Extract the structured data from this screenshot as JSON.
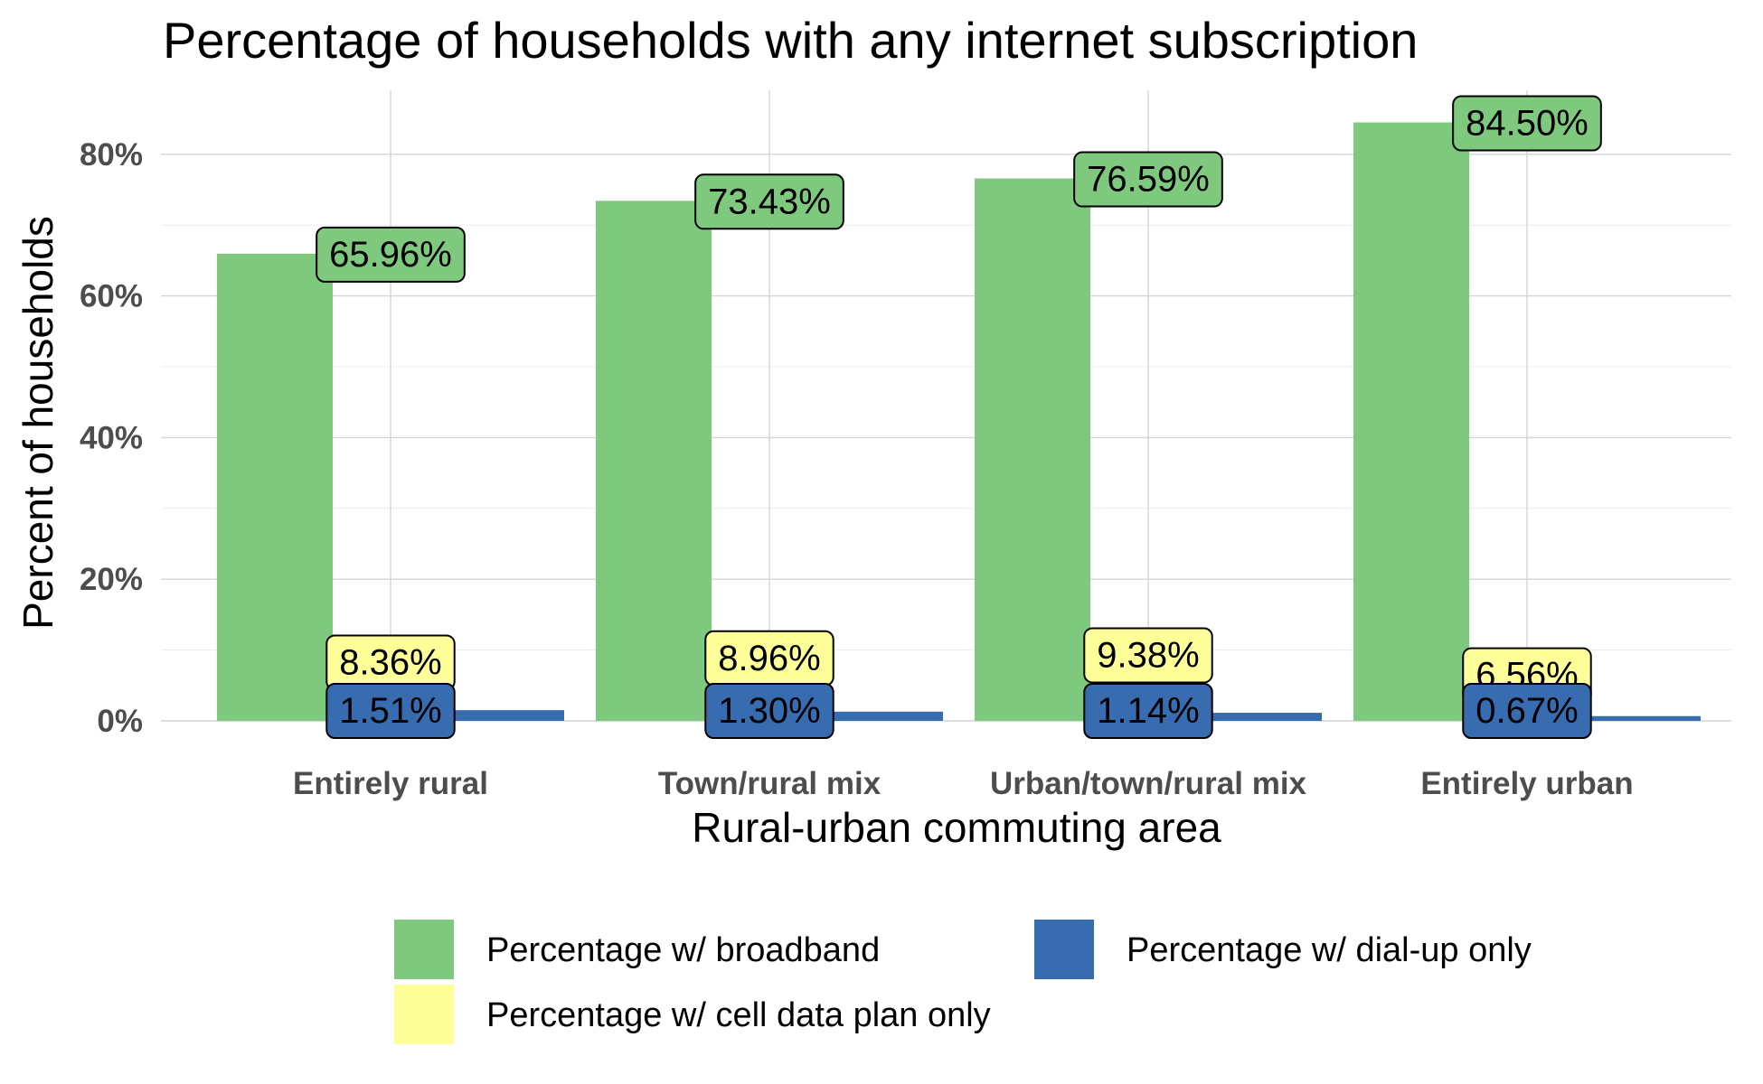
{
  "chart_data": {
    "type": "bar",
    "title": "Percentage of households with any internet subscription",
    "xlabel": "Rural-urban commuting area",
    "ylabel": "Percent of households",
    "categories": [
      "Entirely rural",
      "Town/rural mix",
      "Urban/town/rural mix",
      "Entirely urban"
    ],
    "ylim": [
      0,
      88
    ],
    "yticks": [
      0,
      20,
      40,
      60,
      80
    ],
    "ytick_labels": [
      "0%",
      "20%",
      "40%",
      "60%",
      "80%"
    ],
    "grid": true,
    "legend_position": "bottom",
    "series": [
      {
        "name": "Percentage w/ broadband",
        "color": "#7fc97f",
        "values": [
          65.96,
          73.43,
          76.59,
          84.5
        ],
        "labels": [
          "65.96%",
          "73.43%",
          "76.59%",
          "84.50%"
        ]
      },
      {
        "name": "Percentage w/ cell data plan only",
        "color": "#ffff99",
        "values": [
          8.36,
          8.96,
          9.38,
          6.56
        ],
        "labels": [
          "8.36%",
          "8.96%",
          "9.38%",
          "6.56%"
        ]
      },
      {
        "name": "Percentage w/ dial-up only",
        "color": "#386cb0",
        "values": [
          1.51,
          1.3,
          1.14,
          0.67
        ],
        "labels": [
          "1.51%",
          "1.30%",
          "1.14%",
          "0.67%"
        ]
      }
    ]
  }
}
